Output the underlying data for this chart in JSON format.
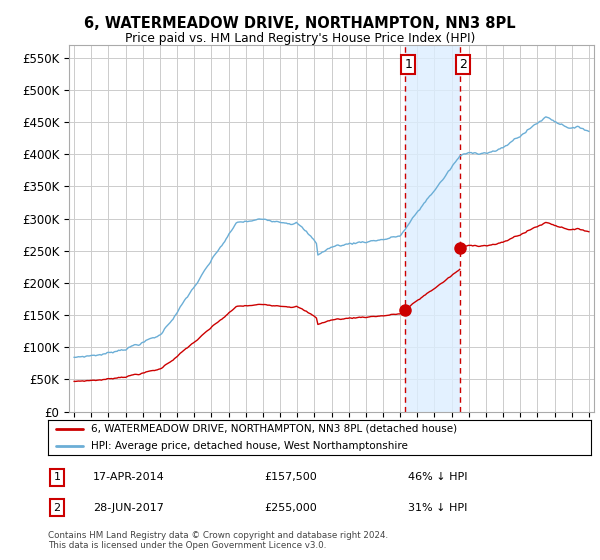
{
  "title": "6, WATERMEADOW DRIVE, NORTHAMPTON, NN3 8PL",
  "subtitle": "Price paid vs. HM Land Registry's House Price Index (HPI)",
  "ylim": [
    0,
    570000
  ],
  "yticks": [
    0,
    50000,
    100000,
    150000,
    200000,
    250000,
    300000,
    350000,
    400000,
    450000,
    500000,
    550000
  ],
  "ytick_labels": [
    "£0",
    "£50K",
    "£100K",
    "£150K",
    "£200K",
    "£250K",
    "£300K",
    "£350K",
    "£400K",
    "£450K",
    "£500K",
    "£550K"
  ],
  "legend_entry1": "6, WATERMEADOW DRIVE, NORTHAMPTON, NN3 8PL (detached house)",
  "legend_entry2": "HPI: Average price, detached house, West Northamptonshire",
  "sale1_date": "17-APR-2014",
  "sale1_price": "£157,500",
  "sale1_hpi": "46% ↓ HPI",
  "sale2_date": "28-JUN-2017",
  "sale2_price": "£255,000",
  "sale2_hpi": "31% ↓ HPI",
  "footer": "Contains HM Land Registry data © Crown copyright and database right 2024.\nThis data is licensed under the Open Government Licence v3.0.",
  "hpi_color": "#6baed6",
  "price_color": "#cc0000",
  "background_color": "#ffffff",
  "grid_color": "#cccccc",
  "sale1_x_year": 2014.29,
  "sale2_x_year": 2017.49,
  "shade_color": "#ddeeff",
  "sale1_price_val": 157500,
  "sale2_price_val": 255000,
  "xlim_left": 1994.7,
  "xlim_right": 2025.3
}
